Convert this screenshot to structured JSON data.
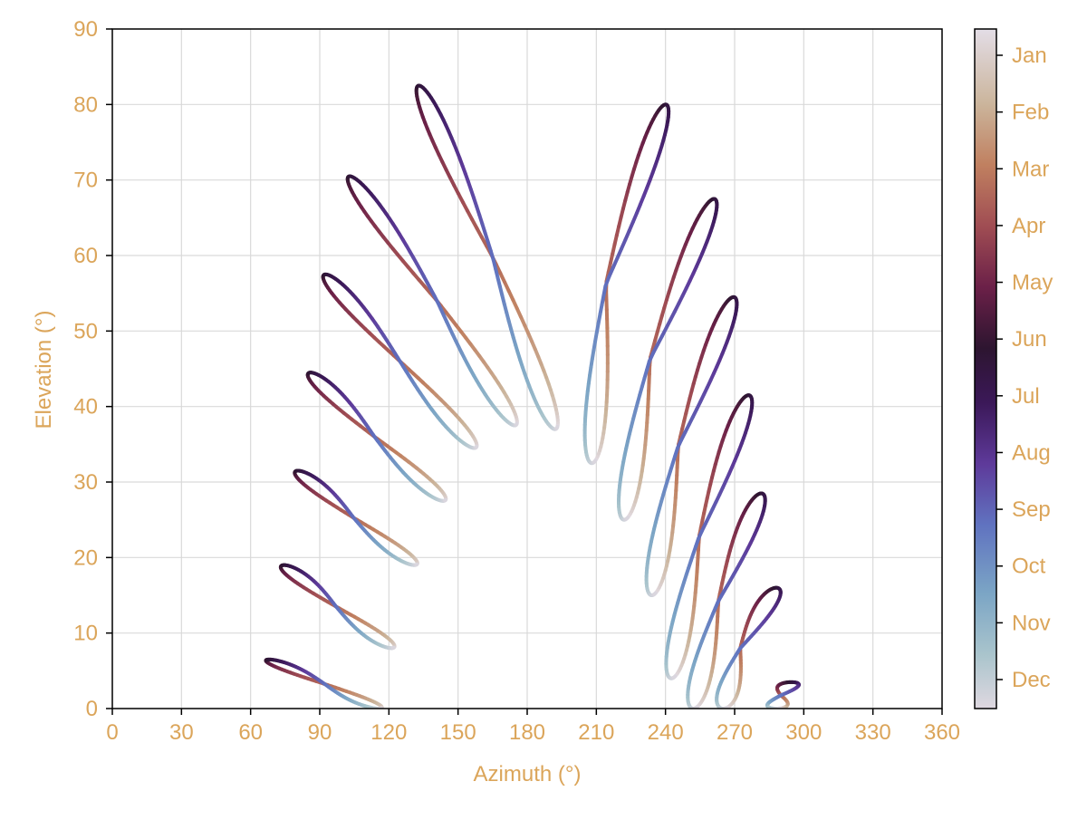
{
  "chart_data": {
    "type": "line",
    "title": "",
    "xlabel": "Azimuth (°)",
    "ylabel": "Elevation (°)",
    "xlim": [
      0,
      360
    ],
    "ylim": [
      0,
      90
    ],
    "xticks": [
      0,
      30,
      60,
      90,
      120,
      150,
      180,
      210,
      240,
      270,
      300,
      330,
      360
    ],
    "yticks": [
      0,
      10,
      20,
      30,
      40,
      50,
      60,
      70,
      80,
      90
    ],
    "grid": true,
    "colormap": "twilight",
    "colorbar": {
      "ticks": [
        "Jan",
        "Feb",
        "Mar",
        "Apr",
        "May",
        "Jun",
        "Jul",
        "Aug",
        "Sep",
        "Oct",
        "Nov",
        "Dec"
      ],
      "stops": [
        "#e3dde6",
        "#cbb59c",
        "#c08060",
        "#a04d53",
        "#6b2048",
        "#2d1530",
        "#3b1858",
        "#5e3a9a",
        "#6073c0",
        "#7ba5c5",
        "#a9c4cc",
        "#dfd8e0"
      ]
    },
    "series": [
      {
        "hour_index": 1,
        "jun_point": [
          68.0,
          6.5
        ],
        "dec_point": [
          115.5,
          0.0
        ],
        "sep_point": [
          93.0,
          0.0
        ]
      },
      {
        "hour_index": 2,
        "jun_point": [
          74.5,
          19.0
        ],
        "dec_point": [
          121.0,
          8.0
        ],
        "sep_point": [
          96.0,
          10.0
        ]
      },
      {
        "hour_index": 3,
        "jun_point": [
          80.5,
          31.5
        ],
        "dec_point": [
          131.0,
          19.0
        ],
        "sep_point": [
          103.0,
          22.0
        ]
      },
      {
        "hour_index": 4,
        "jun_point": [
          86.0,
          44.5
        ],
        "dec_point": [
          143.5,
          27.5
        ],
        "sep_point": [
          112.0,
          34.0
        ]
      },
      {
        "hour_index": 5,
        "jun_point": [
          92.5,
          57.5
        ],
        "dec_point": [
          157.0,
          34.5
        ],
        "sep_point": [
          125.0,
          44.0
        ]
      },
      {
        "hour_index": 6,
        "jun_point": [
          103.0,
          70.5
        ],
        "dec_point": [
          174.5,
          37.5
        ],
        "sep_point": [
          145.0,
          50.0
        ]
      },
      {
        "hour_index": 7,
        "jun_point": [
          133.0,
          82.5
        ],
        "dec_point": [
          192.0,
          37.0
        ],
        "sep_point": [
          170.0,
          52.0
        ]
      },
      {
        "hour_index": 8,
        "jun_point": [
          240.0,
          80.0
        ],
        "dec_point": [
          208.0,
          32.5
        ],
        "sep_point": [
          196.0,
          50.0
        ]
      },
      {
        "hour_index": 9,
        "jun_point": [
          261.0,
          67.5
        ],
        "dec_point": [
          222.0,
          25.0
        ],
        "sep_point": [
          218.0,
          45.0
        ]
      },
      {
        "hour_index": 10,
        "jun_point": [
          269.5,
          54.5
        ],
        "dec_point": [
          234.0,
          15.0
        ],
        "sep_point": [
          234.0,
          36.0
        ]
      },
      {
        "hour_index": 11,
        "jun_point": [
          276.0,
          41.5
        ],
        "dec_point": [
          242.5,
          4.0
        ],
        "sep_point": [
          246.0,
          25.0
        ]
      },
      {
        "hour_index": 12,
        "jun_point": [
          281.5,
          28.5
        ],
        "dec_point": [
          252.0,
          0.0
        ],
        "sep_point": [
          256.0,
          14.0
        ]
      },
      {
        "hour_index": 13,
        "jun_point": [
          288.0,
          16.0
        ],
        "dec_point": [
          265.0,
          0.0
        ],
        "sep_point": [
          265.0,
          3.0
        ]
      },
      {
        "hour_index": 14,
        "jun_point": [
          294.5,
          3.5
        ],
        "dec_point": [
          288.0,
          0.0
        ],
        "sep_point": [
          288.0,
          0.0
        ]
      }
    ]
  }
}
